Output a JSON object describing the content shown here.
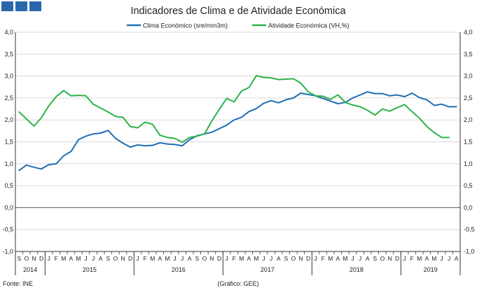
{
  "chart_data": {
    "type": "line",
    "title": "Indicadores de Clima e de Atividade Económica",
    "source": "Fonte: INE",
    "credit": "(Gráfico: GEE)",
    "ylim": [
      -1.0,
      4.0
    ],
    "yticks": [
      "4,0",
      "3,5",
      "3,0",
      "2,5",
      "2,0",
      "1,5",
      "1,0",
      "0,5",
      "0,0",
      "-0,5",
      "-1,0"
    ],
    "grid": true,
    "legend_position": "top",
    "x_months": [
      "S",
      "O",
      "N",
      "D",
      "J",
      "F",
      "M",
      "A",
      "M",
      "J",
      "J",
      "A",
      "S",
      "O",
      "N",
      "D",
      "J",
      "F",
      "M",
      "A",
      "M",
      "J",
      "J",
      "A",
      "S",
      "O",
      "N",
      "D",
      "J",
      "F",
      "M",
      "A",
      "M",
      "J",
      "J",
      "A",
      "S",
      "O",
      "N",
      "D",
      "J",
      "F",
      "M",
      "A",
      "M",
      "J",
      "J",
      "A",
      "S",
      "O",
      "N",
      "D",
      "J",
      "F",
      "M",
      "A",
      "M",
      "J",
      "J",
      "A"
    ],
    "years": [
      {
        "label": "2014",
        "start": 0,
        "count": 4
      },
      {
        "label": "2015",
        "start": 4,
        "count": 12
      },
      {
        "label": "2016",
        "start": 16,
        "count": 12
      },
      {
        "label": "2017",
        "start": 28,
        "count": 12
      },
      {
        "label": "2018",
        "start": 40,
        "count": 12
      },
      {
        "label": "2019",
        "start": 52,
        "count": 8
      }
    ],
    "series": [
      {
        "name": "Clima Económico (sre/mm3m)",
        "color": "#1f6fb5",
        "values": [
          0.85,
          0.97,
          0.92,
          0.88,
          0.98,
          1.0,
          1.18,
          1.28,
          1.55,
          1.63,
          1.68,
          1.7,
          1.76,
          1.58,
          1.47,
          1.38,
          1.43,
          1.41,
          1.42,
          1.48,
          1.45,
          1.44,
          1.41,
          1.55,
          1.64,
          1.68,
          1.72,
          1.8,
          1.88,
          2.0,
          2.06,
          2.19,
          2.26,
          2.38,
          2.44,
          2.39,
          2.46,
          2.5,
          2.61,
          2.58,
          2.55,
          2.49,
          2.43,
          2.37,
          2.4,
          2.5,
          2.57,
          2.64,
          2.6,
          2.6,
          2.55,
          2.57,
          2.53,
          2.61,
          2.51,
          2.46,
          2.33,
          2.36,
          2.3,
          2.3
        ]
      },
      {
        "name": "Atividade Económica (VH,%)",
        "color": "#2db34a",
        "values": [
          2.18,
          2.02,
          1.86,
          2.05,
          2.32,
          2.53,
          2.67,
          2.55,
          2.56,
          2.55,
          2.36,
          2.27,
          2.18,
          2.08,
          2.06,
          1.85,
          1.82,
          1.95,
          1.9,
          1.65,
          1.6,
          1.58,
          1.49,
          1.6,
          1.63,
          1.68,
          1.98,
          2.24,
          2.49,
          2.41,
          2.66,
          2.74,
          3.01,
          2.97,
          2.96,
          2.92,
          2.93,
          2.94,
          2.84,
          2.64,
          2.55,
          2.54,
          2.47,
          2.57,
          2.4,
          2.34,
          2.3,
          2.22,
          2.11,
          2.25,
          2.2,
          2.28,
          2.35,
          2.19,
          2.04,
          1.85,
          1.71,
          1.6,
          1.6,
          null
        ]
      }
    ]
  }
}
